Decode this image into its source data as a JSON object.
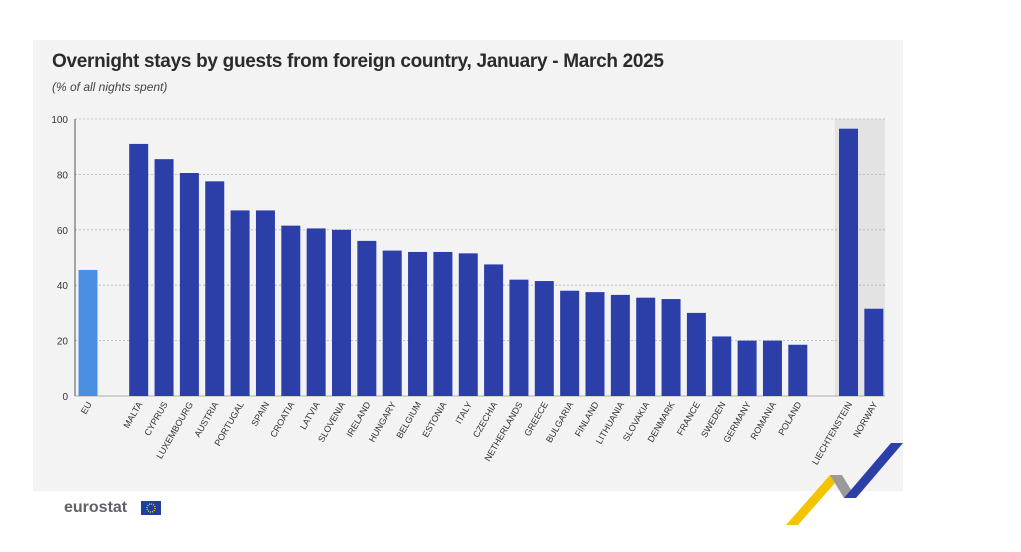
{
  "header": {
    "title": "Overnight stays by guests from foreign country, January - March 2025",
    "subtitle": "(% of all nights spent)"
  },
  "brand": {
    "logo_text": "eurostat",
    "flag_icon": "eu-flag-icon"
  },
  "colors": {
    "eu_bar": "#4b8fe2",
    "country_bar": "#2c3fa8",
    "non_eu_band": "#e3e3e3",
    "panel": "#f3f3f3"
  },
  "chart_data": {
    "type": "bar",
    "title": "Overnight stays by guests from foreign country, January - March 2025",
    "subtitle": "(% of all nights spent)",
    "xlabel": "",
    "ylabel": "",
    "ylim": [
      0,
      100
    ],
    "yticks": [
      0,
      20,
      40,
      60,
      80,
      100
    ],
    "grid": true,
    "categories": [
      "EU",
      "MALTA",
      "CYPRUS",
      "LUXEMBOURG",
      "AUSTRIA",
      "PORTUGAL",
      "SPAIN",
      "CROATIA",
      "LATVIA",
      "SLOVENIA",
      "IRELAND",
      "HUNGARY",
      "BELGIUM",
      "ESTONIA",
      "ITALY",
      "CZECHIA",
      "NETHERLANDS",
      "GREECE",
      "BULGARIA",
      "FINLAND",
      "LITHUANIA",
      "SLOVAKIA",
      "DENMARK",
      "FRANCE",
      "SWEDEN",
      "GERMANY",
      "ROMANIA",
      "POLAND",
      "LIECHTENSTEIN",
      "NORWAY"
    ],
    "values": [
      45.5,
      91,
      85.5,
      80.5,
      77.5,
      67,
      67,
      61.5,
      60.5,
      60,
      56,
      52.5,
      52,
      52,
      51.5,
      47.5,
      42,
      41.5,
      38,
      37.5,
      36.5,
      35.5,
      35,
      30,
      21.5,
      20,
      20,
      18.5,
      96.5,
      31.5
    ],
    "groups": [
      "eu",
      "member",
      "member",
      "member",
      "member",
      "member",
      "member",
      "member",
      "member",
      "member",
      "member",
      "member",
      "member",
      "member",
      "member",
      "member",
      "member",
      "member",
      "member",
      "member",
      "member",
      "member",
      "member",
      "member",
      "member",
      "member",
      "member",
      "member",
      "efta",
      "efta"
    ]
  }
}
